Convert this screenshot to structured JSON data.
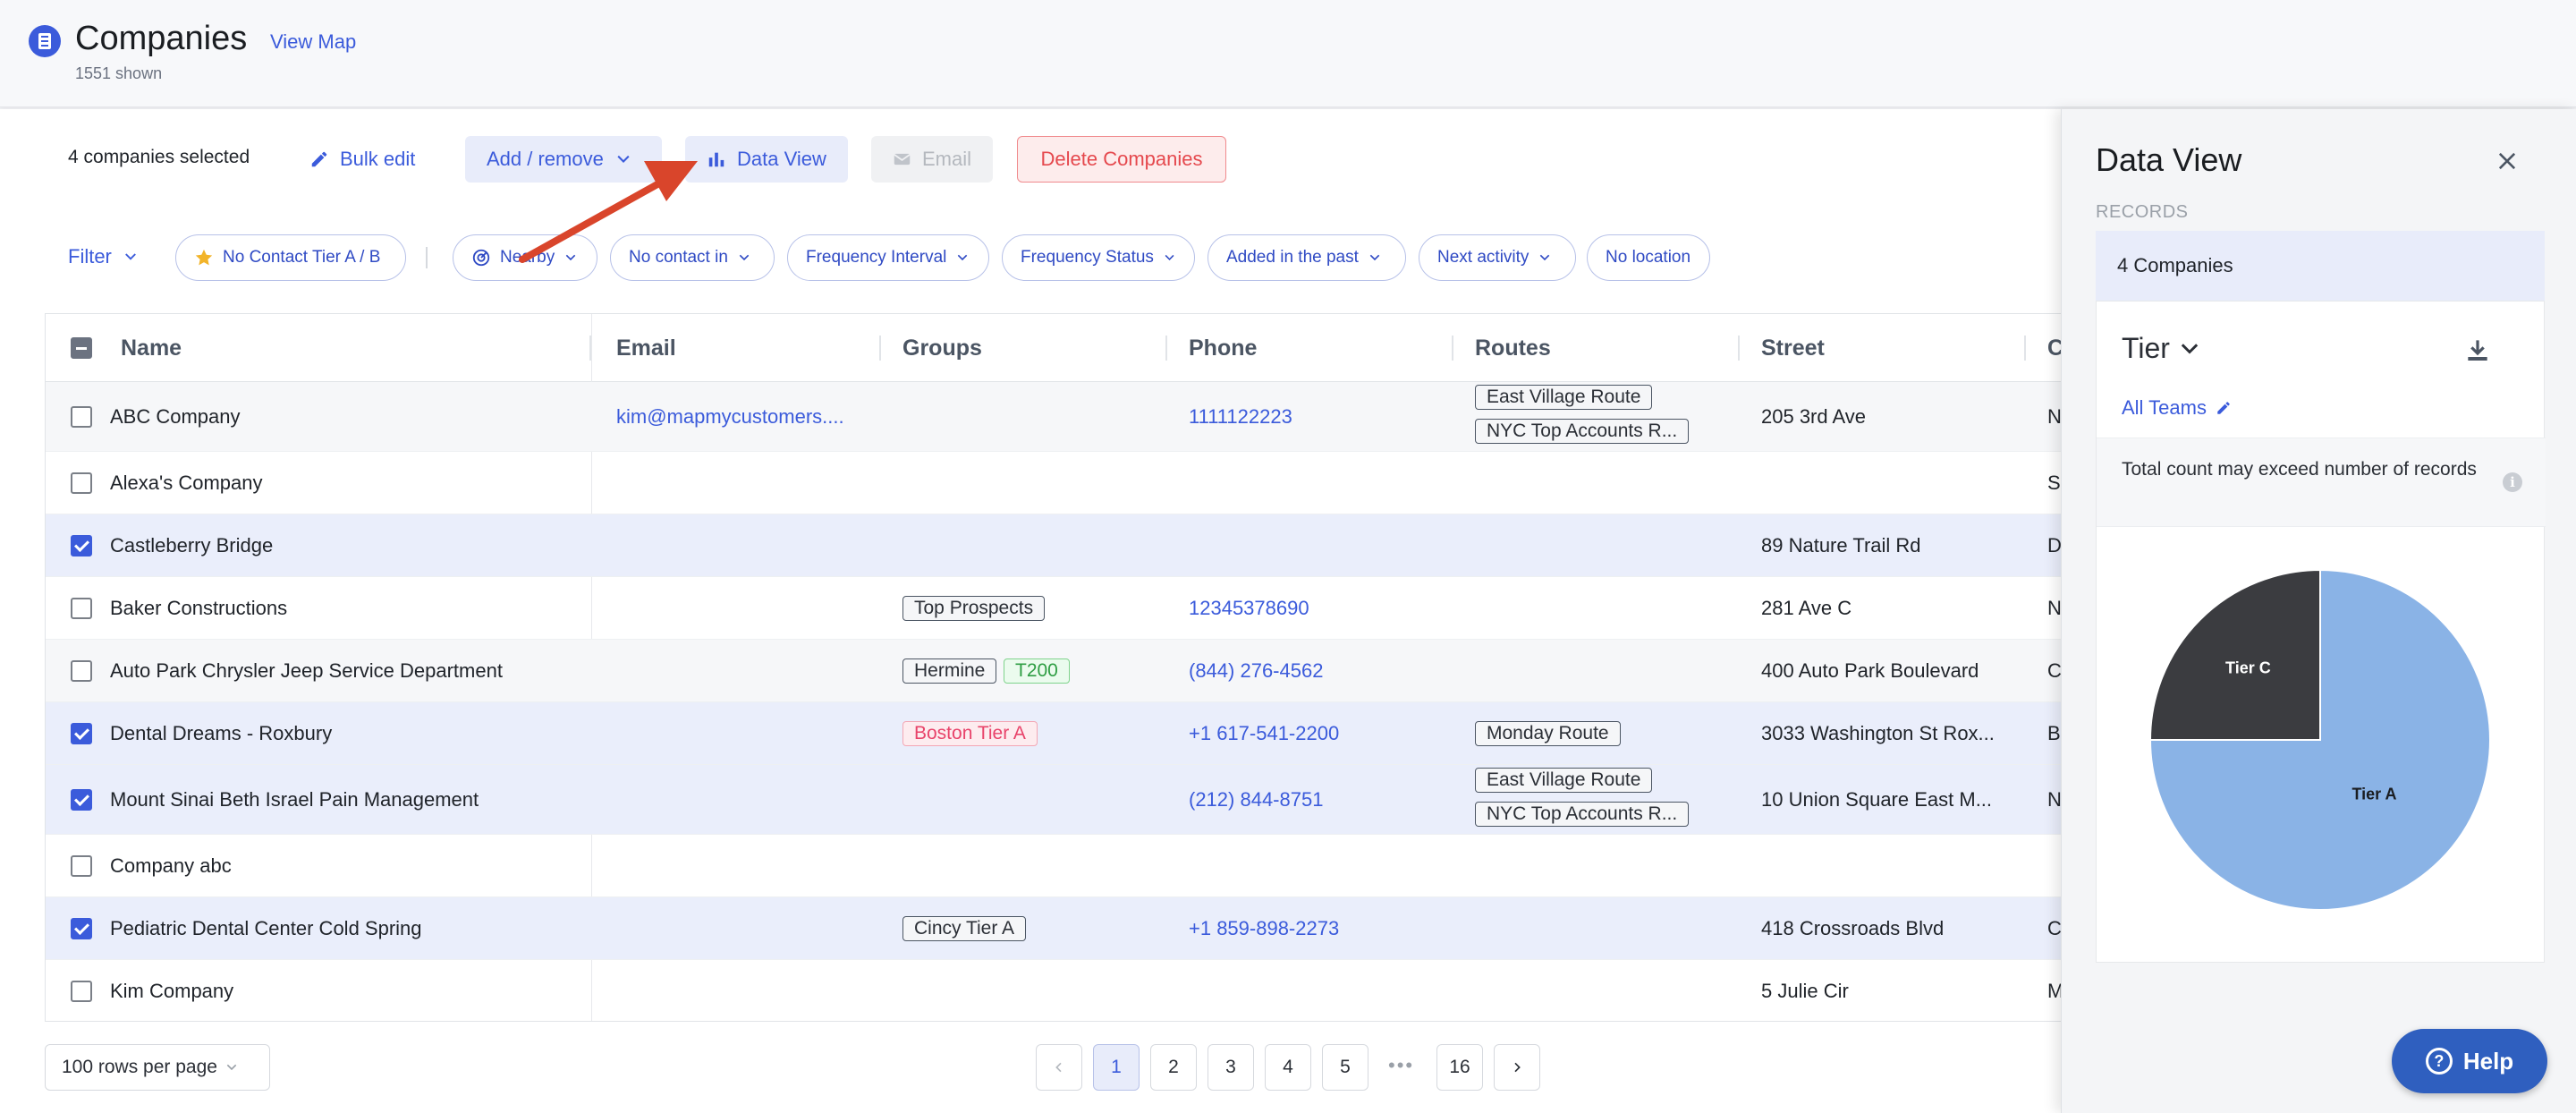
{
  "header": {
    "title": "Companies",
    "view_map": "View Map",
    "shown_count": "1551 shown"
  },
  "toolbar": {
    "selected_count": "4 companies selected",
    "bulk_edit": "Bulk edit",
    "add_remove": "Add / remove",
    "data_view": "Data View",
    "email": "Email",
    "delete": "Delete Companies"
  },
  "filters": {
    "filter_label": "Filter",
    "chips": [
      "No Contact Tier A / B",
      "Nearby",
      "No contact in",
      "Frequency Interval",
      "Frequency Status",
      "Added in the past",
      "Next activity",
      "No location"
    ]
  },
  "table": {
    "columns": [
      "Name",
      "Email",
      "Groups",
      "Phone",
      "Routes",
      "Street",
      "C"
    ],
    "rows": [
      {
        "name": "ABC Company",
        "email": "kim@mapmycustomers....",
        "groups": [],
        "phone": "1111122223",
        "routes": [
          "East Village Route",
          "NYC Top Accounts R..."
        ],
        "street": "205 3rd Ave",
        "city": "N",
        "checked": false
      },
      {
        "name": "Alexa's Company",
        "email": "",
        "groups": [],
        "phone": "",
        "routes": [],
        "street": "",
        "city": "S",
        "checked": false
      },
      {
        "name": "Castleberry Bridge",
        "email": "",
        "groups": [],
        "phone": "",
        "routes": [],
        "street": "89 Nature Trail Rd",
        "city": "D",
        "checked": true
      },
      {
        "name": "Baker Constructions",
        "email": "",
        "groups": [
          "Top Prospects"
        ],
        "phone": "12345378690",
        "routes": [],
        "street": "281 Ave C",
        "city": "N",
        "checked": false
      },
      {
        "name": "Auto Park Chrysler Jeep Service Department",
        "email": "",
        "groups": [
          "Hermine",
          "T200"
        ],
        "phone": "(844) 276-4562",
        "routes": [],
        "street": "400 Auto Park Boulevard",
        "city": "C",
        "checked": false
      },
      {
        "name": "Dental Dreams - Roxbury",
        "email": "",
        "groups": [
          "Boston Tier A"
        ],
        "phone": "+1 617-541-2200",
        "routes": [
          "Monday Route"
        ],
        "street": "3033 Washington St Rox...",
        "city": "B",
        "checked": true
      },
      {
        "name": "Mount Sinai Beth Israel Pain Management",
        "email": "",
        "groups": [],
        "phone": "(212) 844-8751",
        "routes": [
          "East Village Route",
          "NYC Top Accounts R..."
        ],
        "street": "10 Union Square East M...",
        "city": "N",
        "checked": true
      },
      {
        "name": "Company abc",
        "email": "",
        "groups": [],
        "phone": "",
        "routes": [],
        "street": "",
        "city": "",
        "checked": false
      },
      {
        "name": "Pediatric Dental Center Cold Spring",
        "email": "",
        "groups": [
          "Cincy Tier A"
        ],
        "phone": "+1 859-898-2273",
        "routes": [],
        "street": "418 Crossroads Blvd",
        "city": "C",
        "checked": true
      },
      {
        "name": "Kim Company",
        "email": "",
        "groups": [],
        "phone": "",
        "routes": [],
        "street": "5 Julie Cir",
        "city": "M",
        "checked": false
      }
    ]
  },
  "footer": {
    "rows_per_page": "100 rows per page",
    "pages": [
      "1",
      "2",
      "3",
      "4",
      "5",
      "16"
    ],
    "current_page": "1",
    "ellipsis": "•••"
  },
  "data_view": {
    "title": "Data View",
    "records_label": "RECORDS",
    "records_value": "4 Companies",
    "group_by": "Tier",
    "teams": "All Teams",
    "note": "Total count may exceed number of records"
  },
  "chart_data": {
    "type": "pie",
    "title": "",
    "slices": [
      {
        "label": "Tier A",
        "value": 3,
        "color": "#8ab3e6"
      },
      {
        "label": "Tier C",
        "value": 1,
        "color": "#3b3c40"
      }
    ]
  },
  "help": {
    "label": "Help"
  },
  "colors": {
    "accent": "#3b5bdb",
    "danger": "#e5484d",
    "arrow": "#d9452b"
  }
}
